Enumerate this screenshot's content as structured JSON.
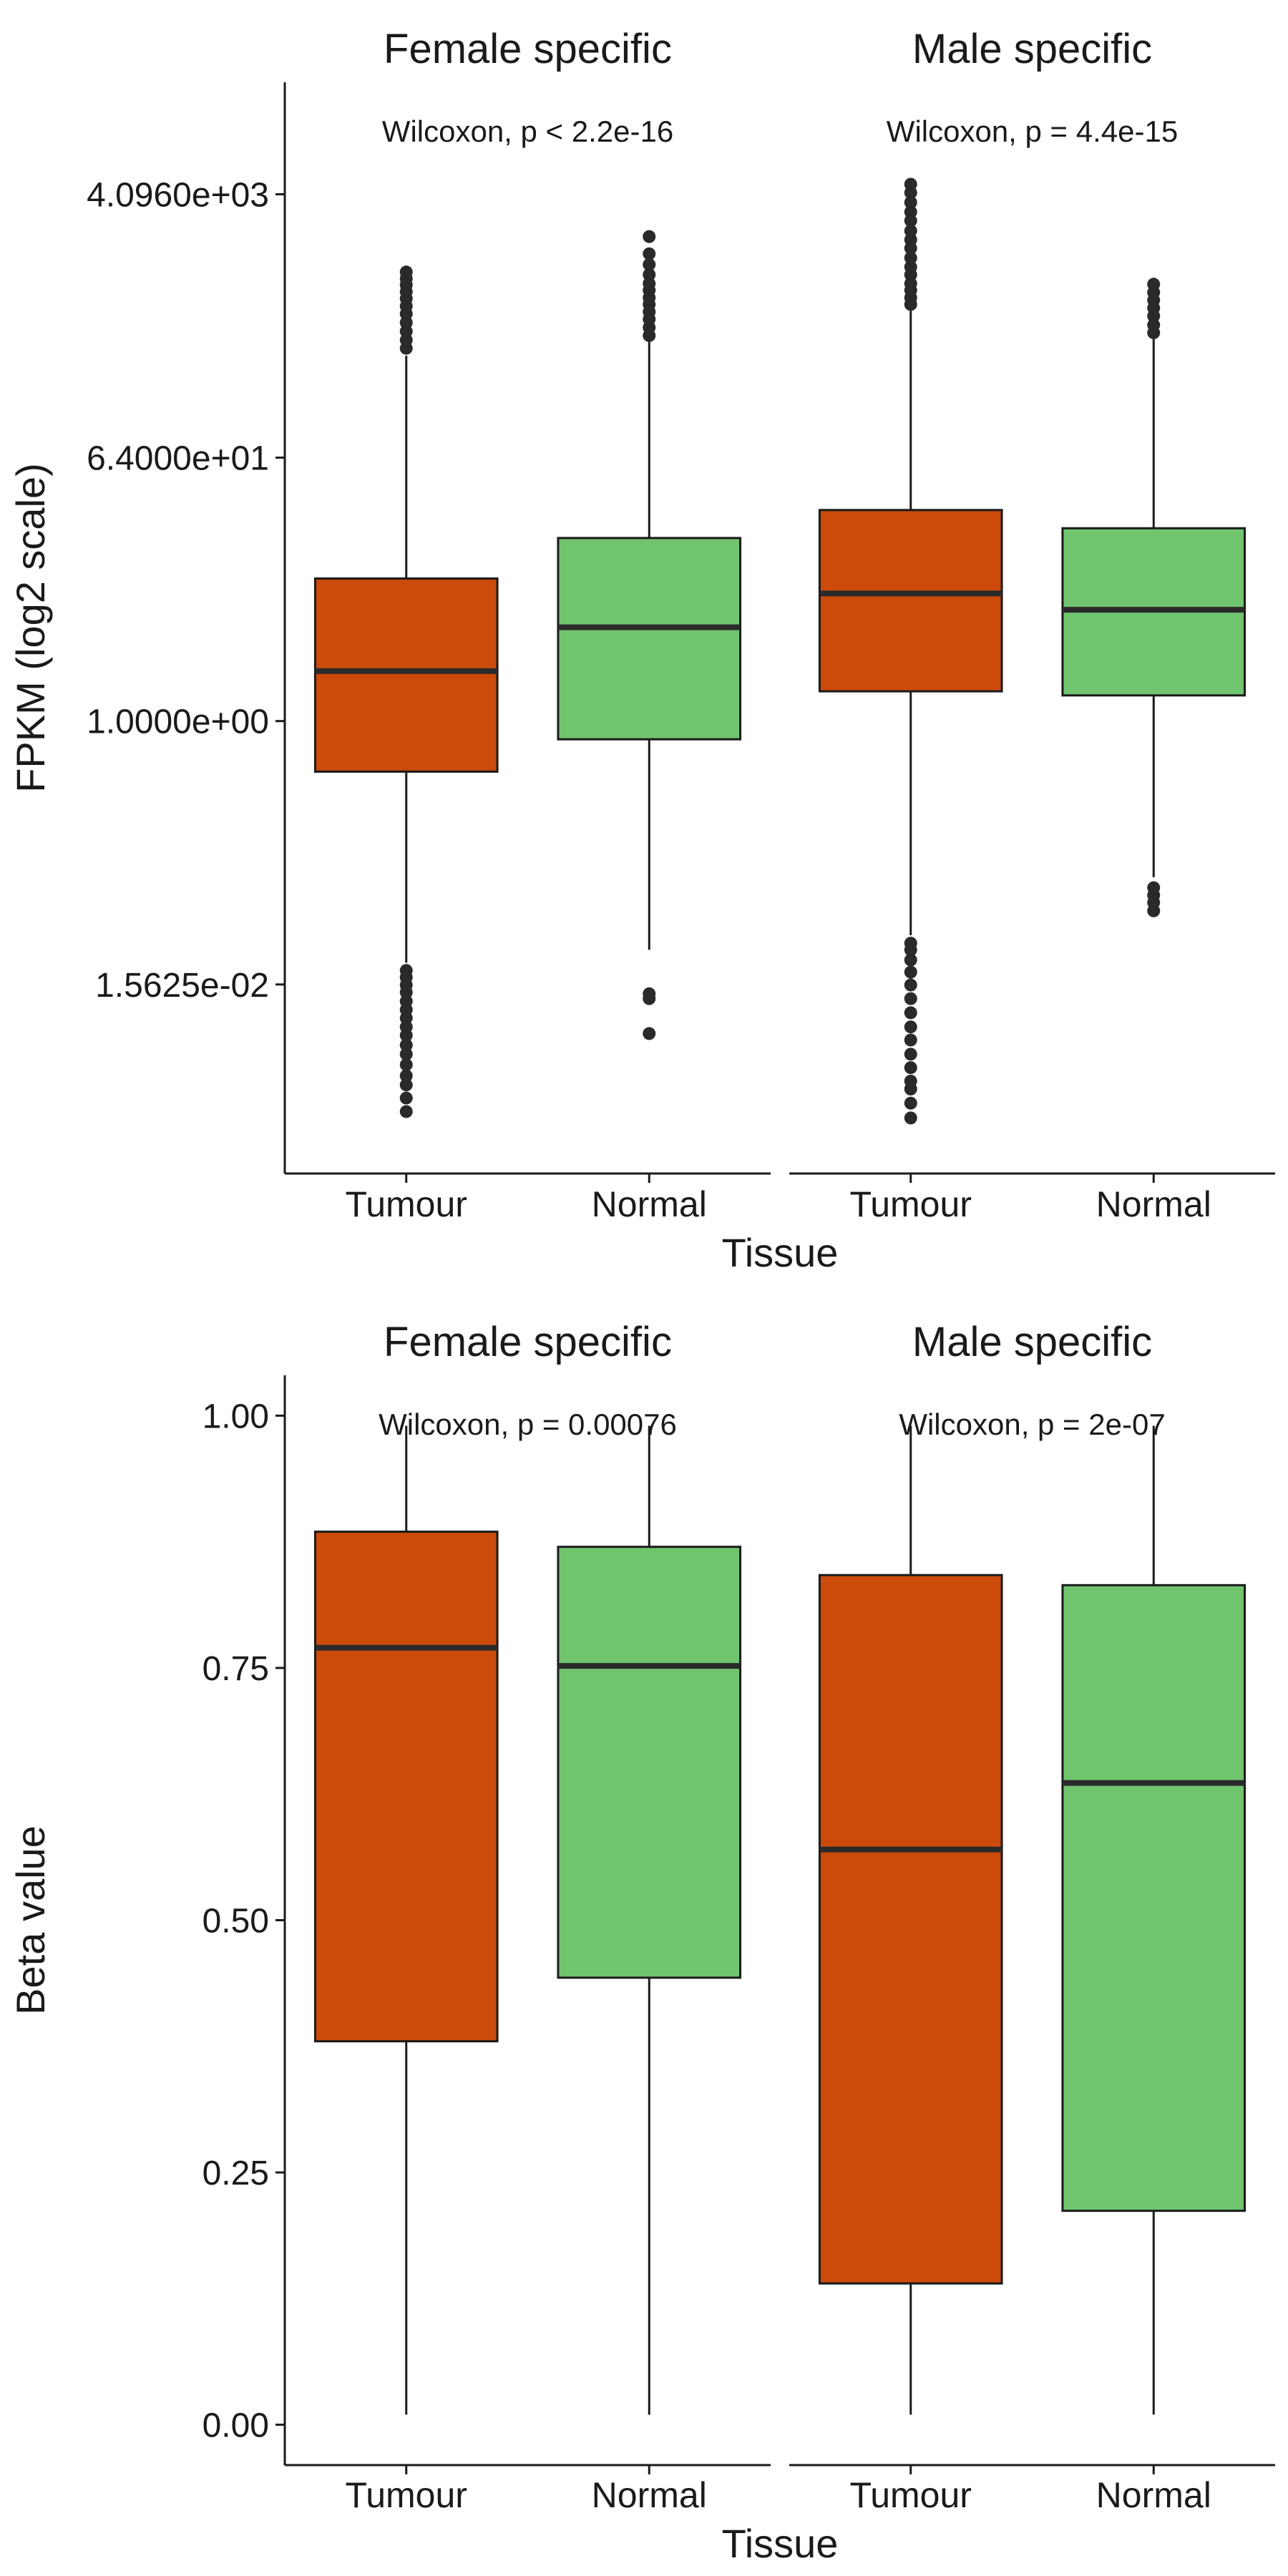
{
  "chart_data": [
    {
      "type": "box",
      "ylabel": "FPKM (log2 scale)",
      "xlabel": "Tissue",
      "y_scale": "log2",
      "y_ticks": [
        0.015625,
        1,
        64,
        4096
      ],
      "y_tick_labels": [
        "1.5625e-02",
        "1.0000e+00",
        "6.4000e+01",
        "4.0960e+03"
      ],
      "ylim": [
        0.00079,
        24000
      ],
      "categories": [
        "Tumour",
        "Normal"
      ],
      "colors": {
        "Tumour": "#cc4a0a",
        "Normal": "#70c46e"
      },
      "facets": [
        {
          "title": "Female specific",
          "annotation": "Wilcoxon, p < 2.2e-16",
          "boxes": [
            {
              "category": "Tumour",
              "lower_whisker": 0.022,
              "q1": 0.45,
              "median": 2.2,
              "q3": 9.5,
              "upper_whisker": 320,
              "outliers": [
                0.0021,
                0.0026,
                0.0032,
                0.0037,
                0.0044,
                0.0052,
                0.006,
                0.007,
                0.008,
                0.0092,
                0.0105,
                0.012,
                0.0138,
                0.0155,
                0.0175,
                0.0195,
                360,
                410,
                470,
                540,
                620,
                700,
                790,
                880,
                980,
                1080,
                1200
              ]
            },
            {
              "category": "Normal",
              "lower_whisker": 0.027,
              "q1": 0.75,
              "median": 4.4,
              "q3": 18,
              "upper_whisker": 400,
              "outliers": [
                0.0072,
                0.0125,
                0.0135,
                440,
                500,
                570,
                640,
                720,
                800,
                900,
                1000,
                1150,
                1350,
                1600,
                2100
              ]
            }
          ]
        },
        {
          "title": "Male specific",
          "annotation": "Wilcoxon, p = 4.4e-15",
          "boxes": [
            {
              "category": "Tumour",
              "lower_whisker": 0.034,
              "q1": 1.6,
              "median": 7.5,
              "q3": 28,
              "upper_whisker": 650,
              "outliers": [
                0.0019,
                0.0024,
                0.003,
                0.0034,
                0.0042,
                0.0052,
                0.0065,
                0.008,
                0.01,
                0.0125,
                0.0155,
                0.019,
                0.023,
                0.027,
                0.03,
                720,
                800,
                900,
                1000,
                1150,
                1300,
                1500,
                1750,
                2000,
                2300,
                2700,
                3100,
                3600,
                4200,
                4800
              ]
            },
            {
              "category": "Normal",
              "lower_whisker": 0.085,
              "q1": 1.5,
              "median": 5.8,
              "q3": 21,
              "upper_whisker": 420,
              "outliers": [
                0.05,
                0.057,
                0.064,
                0.072,
                460,
                520,
                600,
                680,
                770,
                870,
                990
              ]
            }
          ]
        }
      ]
    },
    {
      "type": "box",
      "ylabel": "Beta value",
      "xlabel": "Tissue",
      "y_scale": "linear",
      "y_ticks": [
        0,
        0.25,
        0.5,
        0.75,
        1.0
      ],
      "y_tick_labels": [
        "0.00",
        "0.25",
        "0.50",
        "0.75",
        "1.00"
      ],
      "ylim": [
        -0.04,
        1.04
      ],
      "categories": [
        "Tumour",
        "Normal"
      ],
      "colors": {
        "Tumour": "#cc4a0a",
        "Normal": "#70c46e"
      },
      "facets": [
        {
          "title": "Female specific",
          "annotation": "Wilcoxon, p = 0.00076",
          "boxes": [
            {
              "category": "Tumour",
              "lower_whisker": 0.01,
              "q1": 0.38,
              "median": 0.77,
              "q3": 0.885,
              "upper_whisker": 0.99,
              "outliers": []
            },
            {
              "category": "Normal",
              "lower_whisker": 0.01,
              "q1": 0.443,
              "median": 0.752,
              "q3": 0.87,
              "upper_whisker": 0.99,
              "outliers": []
            }
          ]
        },
        {
          "title": "Male specific",
          "annotation": "Wilcoxon, p = 2e-07",
          "boxes": [
            {
              "category": "Tumour",
              "lower_whisker": 0.01,
              "q1": 0.14,
              "median": 0.57,
              "q3": 0.842,
              "upper_whisker": 0.99,
              "outliers": []
            },
            {
              "category": "Normal",
              "lower_whisker": 0.01,
              "q1": 0.212,
              "median": 0.636,
              "q3": 0.832,
              "upper_whisker": 0.99,
              "outliers": []
            }
          ]
        }
      ]
    }
  ]
}
